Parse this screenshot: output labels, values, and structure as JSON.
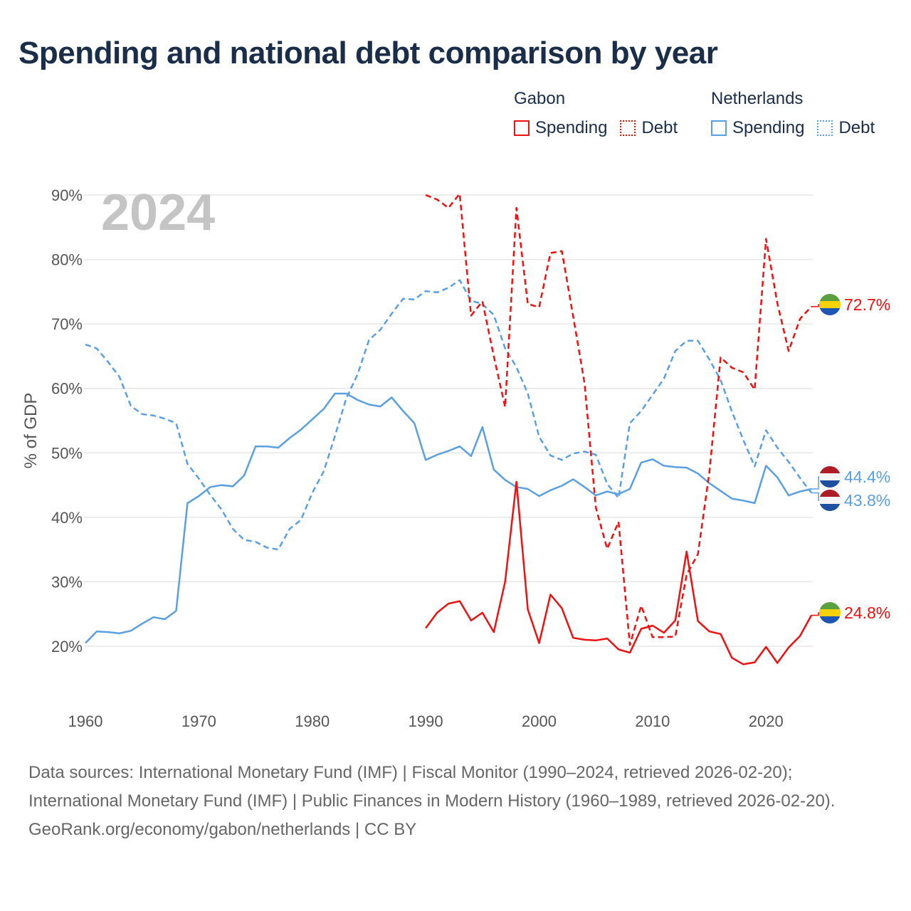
{
  "title": "Spending and national debt comparison by year",
  "legend": {
    "groups": [
      {
        "name": "Gabon",
        "color": "#ee1111",
        "items": [
          {
            "label": "Spending",
            "style": "solid"
          },
          {
            "label": "Debt",
            "style": "dotted"
          }
        ]
      },
      {
        "name": "Netherlands",
        "color": "#5aa0e0",
        "items": [
          {
            "label": "Spending",
            "style": "solid"
          },
          {
            "label": "Debt",
            "style": "dotted"
          }
        ]
      }
    ]
  },
  "year_watermark": "2024",
  "footer": {
    "sources": "Data sources: International Monetary Fund (IMF) | Fiscal Monitor (1990–2024, retrieved 2026-02-20); International Monetary Fund (IMF) | Public Finances in Modern History (1960–1989, retrieved 2026-02-20).",
    "credit": "GeoRank.org/economy/gabon/netherlands | CC BY"
  },
  "chart_data": {
    "type": "line",
    "title": "Spending and national debt comparison by year",
    "xlabel": "",
    "ylabel": "% of GDP",
    "xlim": [
      1959,
      2025
    ],
    "ylim": [
      13,
      92
    ],
    "xticks": [
      1960,
      1970,
      1980,
      1990,
      2000,
      2010,
      2020
    ],
    "yticks": [
      20,
      30,
      40,
      50,
      60,
      70,
      80,
      90
    ],
    "ytick_labels": [
      "20%",
      "30%",
      "40%",
      "50%",
      "60%",
      "70%",
      "80%",
      "90%"
    ],
    "grid": true,
    "series": [
      {
        "name": "Netherlands Spending",
        "country": "Netherlands",
        "metric": "Spending",
        "color": "#5aa0e0",
        "dash": "solid",
        "start_year": 1960,
        "values": [
          20.5,
          22.3,
          22.2,
          22.0,
          22.4,
          23.5,
          24.5,
          24.2,
          25.5,
          42.2,
          43.3,
          44.7,
          45.0,
          44.8,
          46.5,
          51.0,
          51.0,
          50.8,
          52.3,
          53.6,
          55.2,
          56.8,
          59.2,
          59.2,
          58.2,
          57.5,
          57.2,
          58.6,
          56.5,
          54.6,
          48.9,
          49.7,
          50.3,
          51.0,
          49.5,
          54.0,
          47.4,
          45.8,
          44.7,
          44.4,
          43.3,
          44.2,
          44.9,
          45.9,
          44.7,
          43.4,
          44.0,
          43.6,
          44.4,
          48.5,
          49.0,
          48.0,
          47.8,
          47.7,
          46.8,
          45.3,
          44.1,
          42.9,
          42.6,
          42.2,
          48.0,
          46.2,
          43.4,
          44.0,
          44.4
        ],
        "end_label": "44.4%"
      },
      {
        "name": "Netherlands Debt",
        "country": "Netherlands",
        "metric": "Debt",
        "color": "#5aa0e0",
        "dash": "dashed",
        "start_year": 1960,
        "values": [
          66.8,
          66.2,
          64.1,
          61.8,
          57.3,
          56.0,
          55.8,
          55.3,
          54.6,
          48.3,
          46.0,
          43.5,
          41.2,
          38.2,
          36.5,
          36.2,
          35.3,
          35.0,
          38.2,
          39.6,
          43.8,
          47.1,
          52.6,
          58.5,
          62.2,
          67.5,
          69.1,
          71.6,
          73.9,
          73.8,
          75.1,
          74.9,
          75.6,
          76.8,
          73.6,
          73.1,
          71.4,
          66.2,
          63.3,
          59.2,
          52.5,
          49.6,
          48.9,
          49.9,
          50.2,
          49.7,
          45.2,
          43.0,
          54.6,
          56.5,
          59.0,
          61.5,
          65.8,
          67.4,
          67.4,
          64.5,
          61.3,
          56.4,
          52.0,
          47.9,
          53.5,
          50.8,
          48.6,
          46.1,
          43.8
        ],
        "end_label": "43.8%"
      },
      {
        "name": "Gabon Spending",
        "country": "Gabon",
        "metric": "Spending",
        "color": "#ee1111",
        "dash": "solid",
        "start_year": 1990,
        "values": [
          22.8,
          25.2,
          26.6,
          27.0,
          24.0,
          25.2,
          22.2,
          30.0,
          45.5,
          25.7,
          20.5,
          28.0,
          25.9,
          21.3,
          21.0,
          20.9,
          21.2,
          19.5,
          19.0,
          22.7,
          23.2,
          22.1,
          24.0,
          34.7,
          23.9,
          22.3,
          21.9,
          18.2,
          17.2,
          17.5,
          19.9,
          17.4,
          19.8,
          21.6,
          24.8
        ],
        "end_label": "24.8%"
      },
      {
        "name": "Gabon Debt",
        "country": "Gabon",
        "metric": "Debt",
        "color": "#ee1111",
        "dash": "dashed",
        "start_year": 1990,
        "values": [
          90.0,
          89.3,
          88.0,
          90.2,
          71.3,
          73.5,
          65.0,
          57.1,
          88.0,
          73.1,
          72.6,
          81.0,
          81.3,
          71.2,
          60.8,
          41.5,
          35.1,
          39.3,
          20.2,
          26.3,
          21.4,
          21.4,
          21.5,
          31.1,
          34.3,
          46.9,
          64.8,
          63.2,
          62.5,
          59.8,
          83.2,
          73.2,
          65.8,
          70.8,
          72.7
        ],
        "end_label": "72.7%"
      }
    ]
  }
}
